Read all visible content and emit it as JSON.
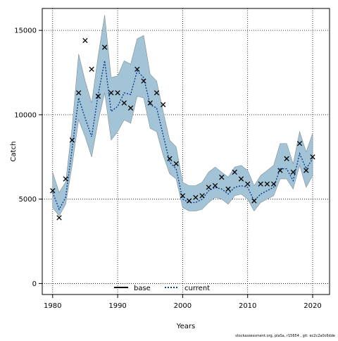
{
  "chart_data": {
    "type": "line",
    "xlabel": "Years",
    "ylabel": "Catch",
    "xlim": [
      1978.4,
      2022.6
    ],
    "ylim": [
      -650,
      16300
    ],
    "x_ticks": [
      1980,
      1990,
      2000,
      2010,
      2020
    ],
    "y_ticks": [
      0,
      5000,
      10000,
      15000
    ],
    "grid": true,
    "legend_position": "bottom-center",
    "years": [
      1980,
      1981,
      1982,
      1983,
      1984,
      1985,
      1986,
      1987,
      1988,
      1989,
      1990,
      1991,
      1992,
      1993,
      1994,
      1995,
      1996,
      1997,
      1998,
      1999,
      2000,
      2001,
      2002,
      2003,
      2004,
      2005,
      2006,
      2007,
      2008,
      2009,
      2010,
      2011,
      2012,
      2013,
      2014,
      2015,
      2016,
      2017,
      2018,
      2019,
      2020
    ],
    "series": [
      {
        "name": "base",
        "style": "solid",
        "color": "#000000",
        "values": []
      },
      {
        "name": "current",
        "style": "dotted",
        "color": "#0b3d91",
        "values": [
          5400,
          4400,
          5100,
          8000,
          11000,
          9800,
          8700,
          11200,
          13200,
          10200,
          10500,
          11300,
          11200,
          12600,
          12200,
          10600,
          10400,
          8800,
          7200,
          6800,
          5000,
          4800,
          4800,
          5000,
          5500,
          5700,
          5600,
          5300,
          5700,
          5800,
          5700,
          4900,
          5300,
          5500,
          5700,
          6800,
          6800,
          6100,
          7700,
          6800,
          7400
        ],
        "ci_lower": [
          4500,
          4000,
          4700,
          7000,
          9700,
          8700,
          7500,
          9600,
          11300,
          8500,
          9000,
          9700,
          9500,
          11100,
          11000,
          9200,
          9000,
          7600,
          6500,
          6200,
          4500,
          4300,
          4300,
          4400,
          4800,
          5100,
          5000,
          4700,
          5200,
          5300,
          5000,
          4300,
          4800,
          5000,
          5200,
          6200,
          6200,
          5600,
          7000,
          5700,
          6400
        ],
        "ci_upper": [
          6600,
          5400,
          6000,
          9300,
          13600,
          12000,
          10700,
          13500,
          15900,
          12200,
          12300,
          13200,
          13000,
          14500,
          14700,
          12400,
          12000,
          10200,
          8500,
          8100,
          6000,
          5800,
          5800,
          6000,
          6600,
          6900,
          6600,
          6300,
          6900,
          7000,
          6700,
          5800,
          6400,
          6700,
          7000,
          8300,
          8300,
          7100,
          9000,
          7800,
          8900
        ]
      }
    ],
    "observed": {
      "marker": "x",
      "values": [
        5500,
        3900,
        6200,
        8500,
        11300,
        14400,
        12700,
        11100,
        14000,
        11300,
        11300,
        10700,
        10400,
        12700,
        12000,
        10700,
        11300,
        10600,
        7400,
        7100,
        5200,
        4900,
        5100,
        5200,
        5700,
        5800,
        6300,
        5600,
        6600,
        6200,
        5900,
        4900,
        5900,
        5900,
        5900,
        6700,
        7400,
        6600,
        8300,
        6700,
        7500
      ]
    },
    "ci_color": "#a3c4d6",
    "credit": "stockassessment.org, plaSa, r15654 , git: ec2c2a0c6dde"
  }
}
